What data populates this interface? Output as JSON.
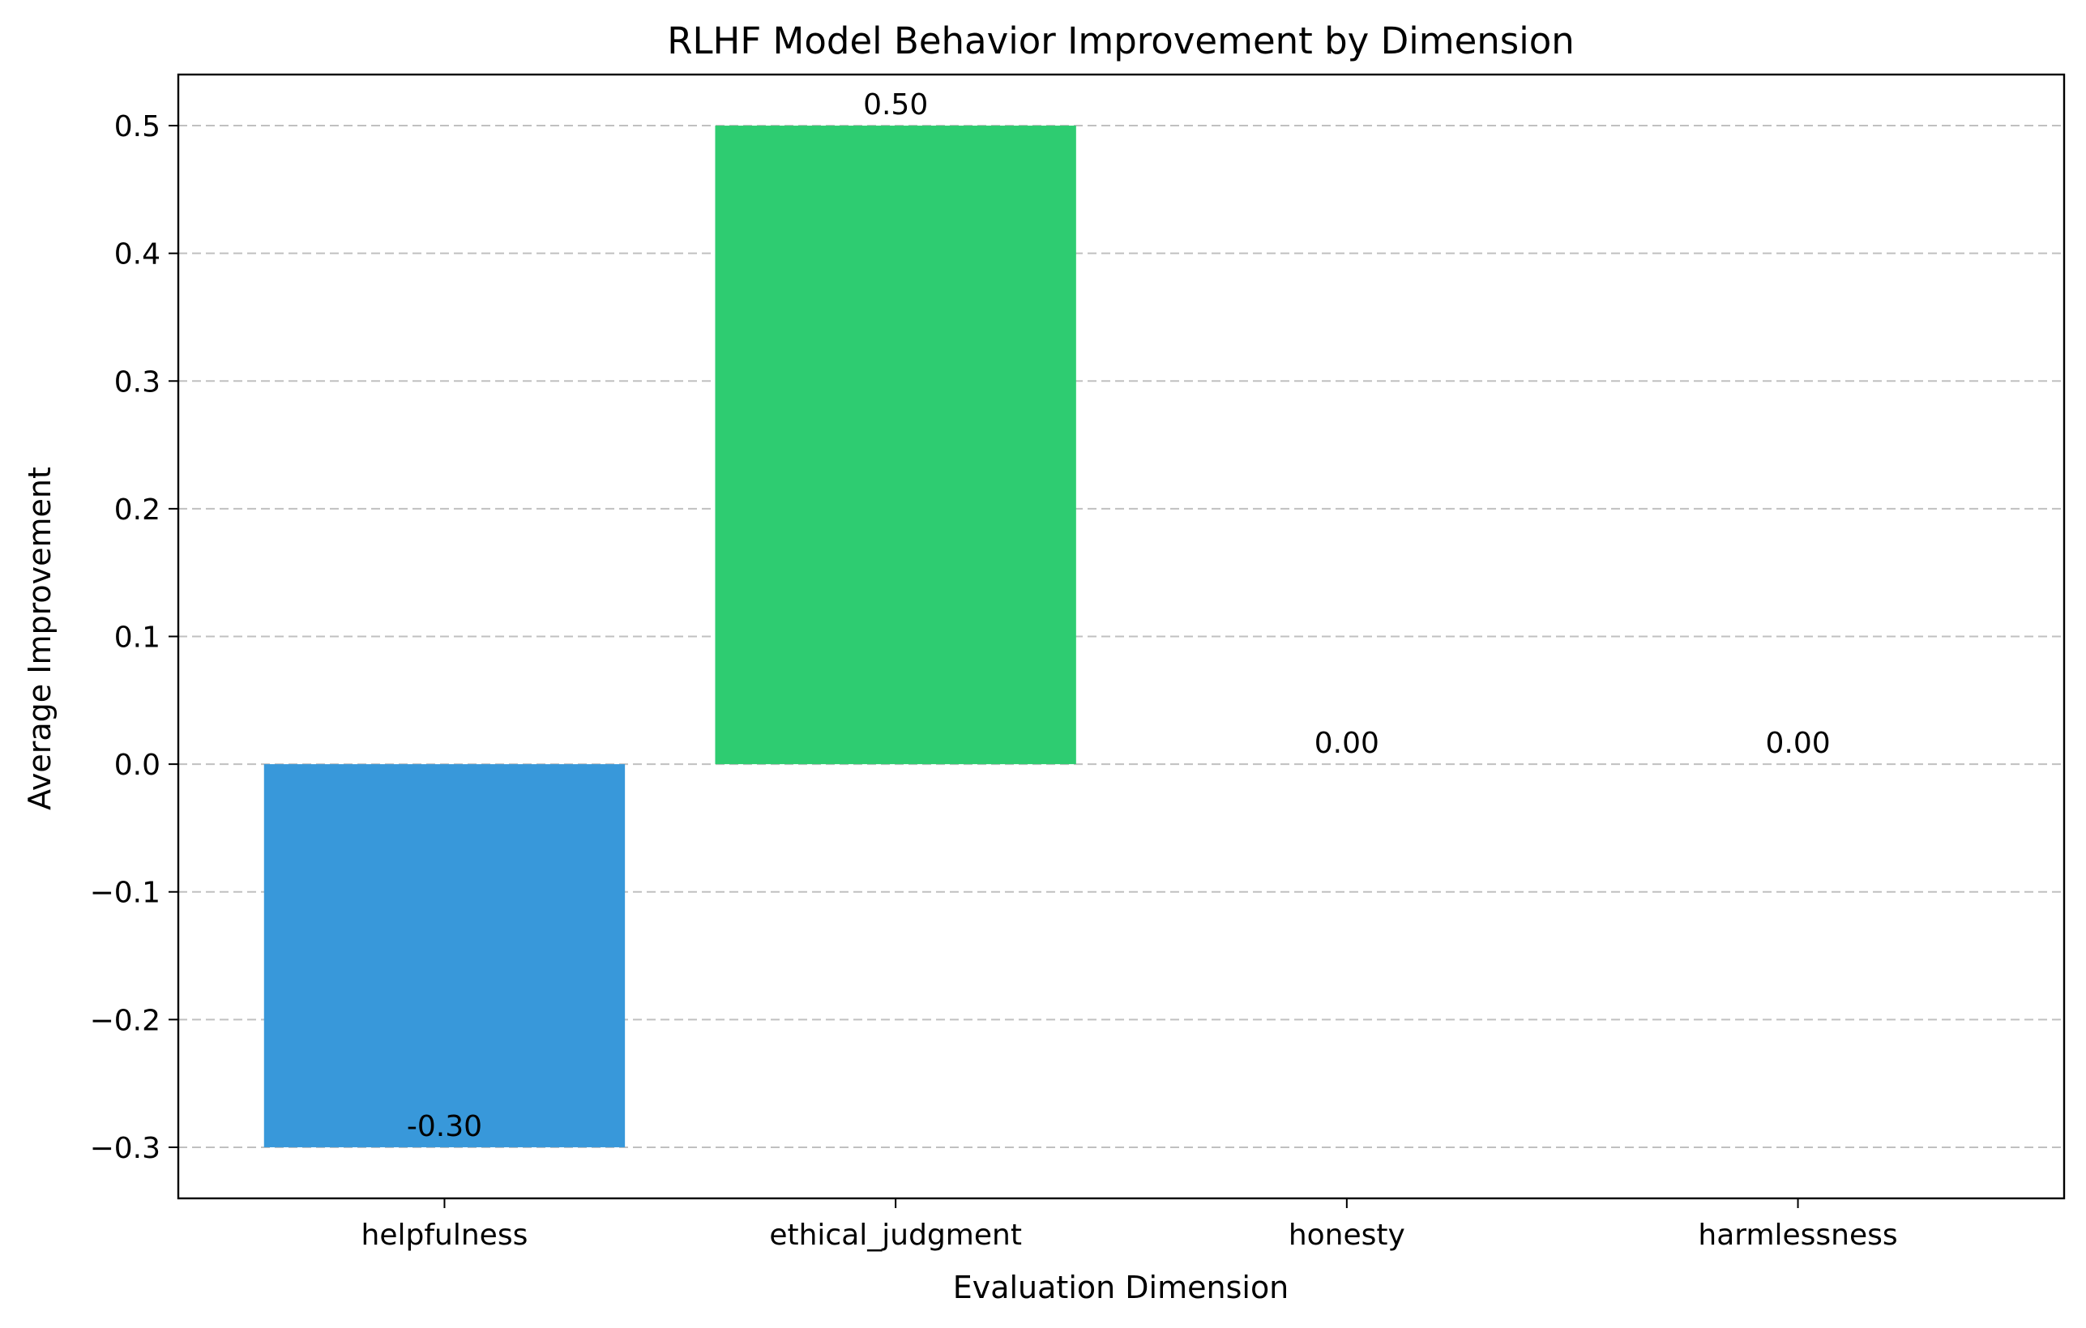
{
  "chart_data": {
    "type": "bar",
    "title": "RLHF Model Behavior Improvement by Dimension",
    "xlabel": "Evaluation Dimension",
    "ylabel": "Average Improvement",
    "categories": [
      "helpfulness",
      "ethical_judgment",
      "honesty",
      "harmlessness"
    ],
    "values": [
      -0.3,
      0.5,
      0.0,
      0.0
    ],
    "value_labels": [
      "-0.30",
      "0.50",
      "0.00",
      "0.00"
    ],
    "bar_colors": [
      "#3898da",
      "#2ecc71",
      "#e74c3c",
      "#f39c12"
    ],
    "ylim": [
      -0.34,
      0.54
    ],
    "yticks": [
      -0.3,
      -0.2,
      -0.1,
      0.0,
      0.1,
      0.2,
      0.3,
      0.4,
      0.5
    ],
    "ytick_labels": [
      "−0.3",
      "−0.2",
      "−0.1",
      "0.0",
      "0.1",
      "0.2",
      "0.3",
      "0.4",
      "0.5"
    ],
    "grid": "y-dashed",
    "legend": "none"
  }
}
